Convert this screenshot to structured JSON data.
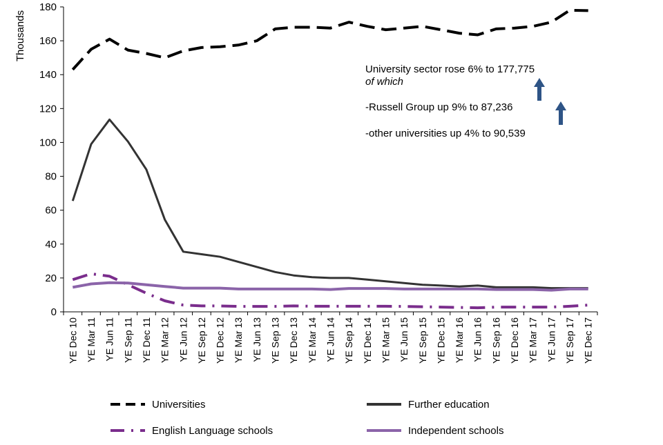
{
  "chart_data": {
    "type": "line",
    "ylabel": "Thousands",
    "xlabel": "",
    "ylim": [
      0,
      180
    ],
    "yticks": [
      "0",
      "20",
      "40",
      "60",
      "80",
      "100",
      "120",
      "140",
      "160",
      "180"
    ],
    "grid": false,
    "legend_position": "bottom",
    "categories": [
      "YE Dec 10",
      "YE Mar 11",
      "YE Jun 11",
      "YE Sep 11",
      "YE Dec 11",
      "YE Mar 12",
      "YE Jun 12",
      "YE Sep 12",
      "YE Dec 12",
      "YE Mar 13",
      "YE Jun 13",
      "YE Sep 13",
      "YE Dec 13",
      "YE Mar 14",
      "YE Jun 14",
      "YE Sep 14",
      "YE Dec 14",
      "YE Mar 15",
      "YE Jun 15",
      "YE Sep 15",
      "YE Dec 15",
      "YE Mar 16",
      "YE Jun 16",
      "YE Sep 16",
      "YE Dec 16",
      "YE Mar 17",
      "YE Jun 17",
      "YE Sep 17",
      "YE Dec 17"
    ],
    "series": [
      {
        "name": "Universities",
        "color": "#000000",
        "style": "dashed",
        "values": [
          143,
          155,
          161,
          154.5,
          152.5,
          150,
          154,
          156,
          156.5,
          157.5,
          160,
          167,
          168,
          168,
          167.5,
          171,
          168.5,
          166.5,
          167.5,
          168.5,
          166.5,
          164.5,
          163.5,
          167,
          167.5,
          168.5,
          171,
          178,
          177.8
        ]
      },
      {
        "name": "Further education",
        "color": "#333333",
        "style": "solid",
        "values": [
          65.5,
          99,
          113.5,
          100.5,
          84,
          54.5,
          35.5,
          34,
          32.5,
          29.5,
          26.5,
          23.5,
          21.5,
          20.5,
          20,
          20,
          19,
          18,
          17,
          16,
          15.5,
          15,
          15.5,
          14.5,
          14.5,
          14.5,
          14,
          14,
          14
        ]
      },
      {
        "name": "English Language schools",
        "color": "#7a2d8c",
        "style": "dashdot",
        "values": [
          19,
          22.5,
          21,
          16,
          11,
          6.5,
          4,
          3.5,
          3.5,
          3.2,
          3.2,
          3.2,
          3.5,
          3.3,
          3.3,
          3.3,
          3.3,
          3.3,
          3.2,
          3,
          2.8,
          2.6,
          2.4,
          2.8,
          2.8,
          2.8,
          2.8,
          3.3,
          4
        ]
      },
      {
        "name": "Independent schools",
        "color": "#8b64a9",
        "style": "solid",
        "values": [
          14.5,
          16.5,
          17.2,
          17,
          16,
          15,
          14,
          14,
          14,
          13.5,
          13.5,
          13.5,
          13.5,
          13.5,
          13.2,
          13.8,
          13.8,
          13.8,
          13.5,
          13.5,
          13.5,
          13.5,
          13.5,
          13.2,
          13.2,
          13.2,
          12.8,
          13.5,
          13.5
        ]
      }
    ],
    "annotations": {
      "line1": "University sector rose  6% to 177,775",
      "line2": "of which",
      "line3": "-Russell Group up 9% to 87,236",
      "line4": "-other universities up 4% to 90,539",
      "arrow_color": "#2e5486"
    }
  }
}
